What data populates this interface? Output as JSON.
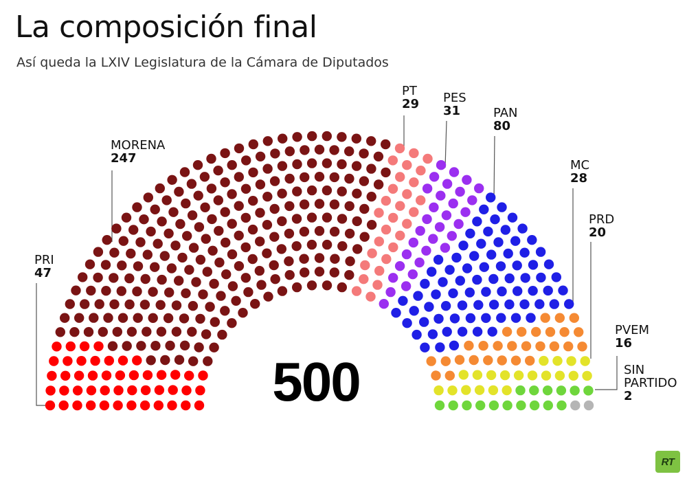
{
  "title": "La composición final",
  "subtitle": "Así queda la LXIV Legislatura de la Cámara de Diputados",
  "total_label": "500",
  "logo_text": "RT",
  "chart_data": {
    "type": "parliament",
    "title": "La composición final",
    "subtitle": "Así queda la LXIV Legislatura de la Cámara de Diputados",
    "total": 500,
    "series": [
      {
        "name": "PRI",
        "value": 47,
        "color": "#ff0000"
      },
      {
        "name": "MORENA",
        "value": 247,
        "color": "#7a1414"
      },
      {
        "name": "PT",
        "value": 29,
        "color": "#f47a7a"
      },
      {
        "name": "PES",
        "value": 31,
        "color": "#9b2ff0"
      },
      {
        "name": "PAN",
        "value": 80,
        "color": "#1f1fe6"
      },
      {
        "name": "MC",
        "value": 28,
        "color": "#f58a33"
      },
      {
        "name": "PRD",
        "value": 20,
        "color": "#e3e32a"
      },
      {
        "name": "PVEM",
        "value": 16,
        "color": "#6fd63c"
      },
      {
        "name": "SIN PARTIDO",
        "value": 2,
        "color": "#b5b5b5"
      }
    ]
  },
  "labels": [
    {
      "key": "PRI",
      "name": "PRI",
      "seats": "47"
    },
    {
      "key": "MORENA",
      "name": "MORENA",
      "seats": "247"
    },
    {
      "key": "PT",
      "name": "PT",
      "seats": "29"
    },
    {
      "key": "PES",
      "name": "PES",
      "seats": "31"
    },
    {
      "key": "PAN",
      "name": "PAN",
      "seats": "80"
    },
    {
      "key": "MC",
      "name": "MC",
      "seats": "28"
    },
    {
      "key": "PRD",
      "name": "PRD",
      "seats": "20"
    },
    {
      "key": "PVEM",
      "name": "PVEM",
      "seats": "16"
    },
    {
      "key": "SIN_PARTIDO",
      "name_line1": "SIN",
      "name_line2": "PARTIDO",
      "seats": "2"
    }
  ]
}
